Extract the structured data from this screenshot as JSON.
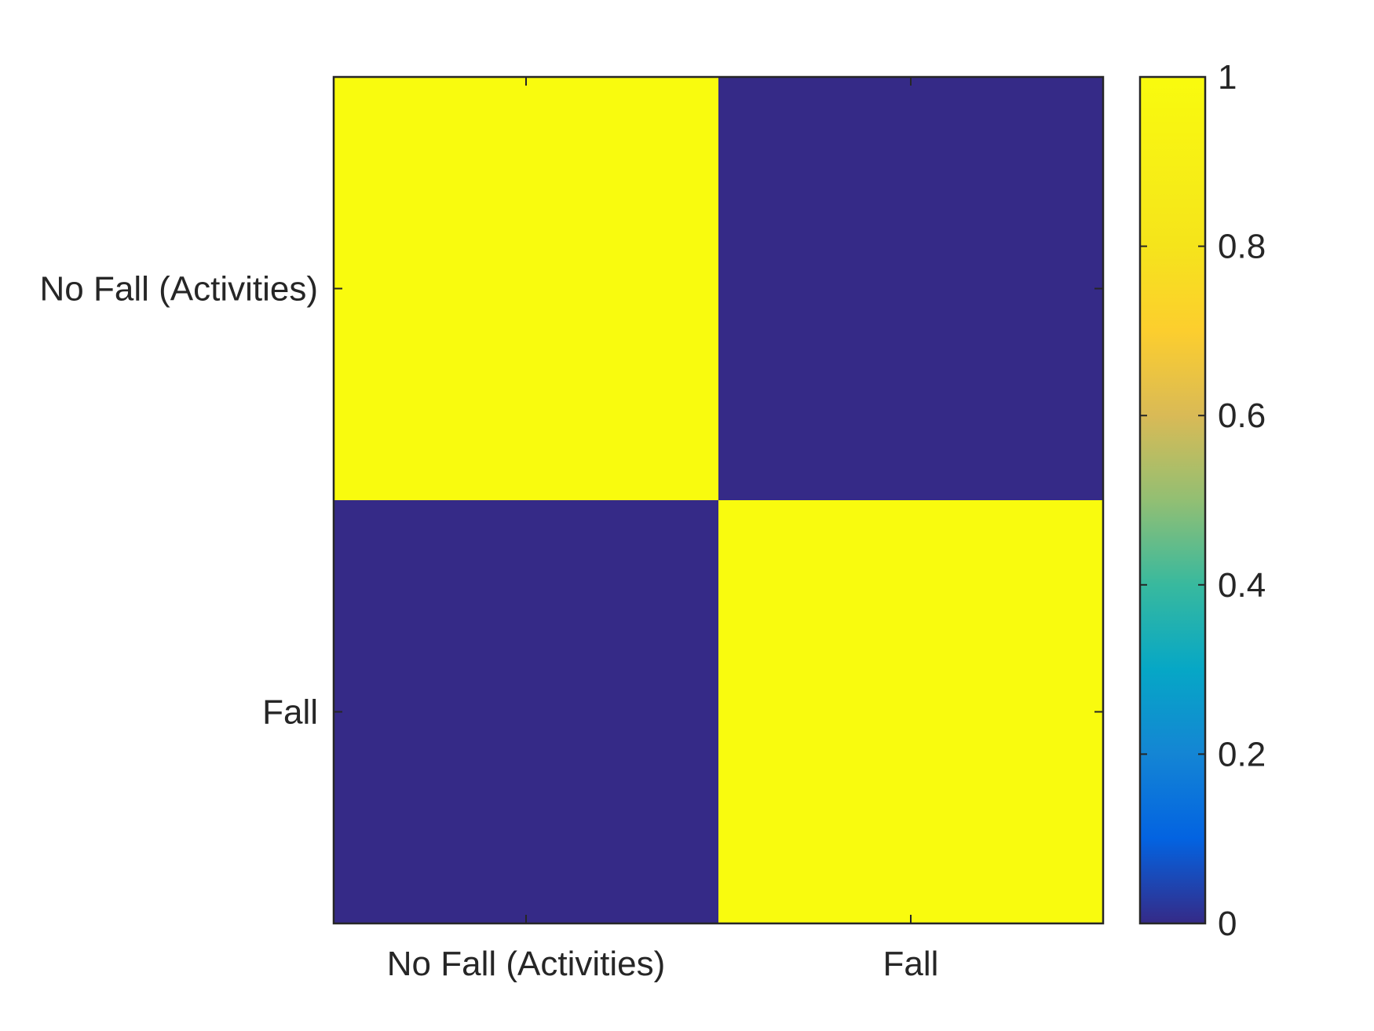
{
  "chart_data": {
    "type": "heatmap",
    "title": "",
    "xlabel": "",
    "ylabel": "",
    "x_categories": [
      "No Fall (Activities)",
      "Fall"
    ],
    "y_categories": [
      "No Fall (Activities)",
      "Fall"
    ],
    "values": [
      [
        1,
        0
      ],
      [
        0,
        1
      ]
    ],
    "colorbar": {
      "range": [
        0,
        1
      ],
      "ticks": [
        0,
        0.2,
        0.4,
        0.6,
        0.8,
        1
      ],
      "tick_labels": [
        "0",
        "0.2",
        "0.4",
        "0.6",
        "0.8",
        "1"
      ],
      "colormap": "parula",
      "location": "right"
    },
    "grid": false
  }
}
